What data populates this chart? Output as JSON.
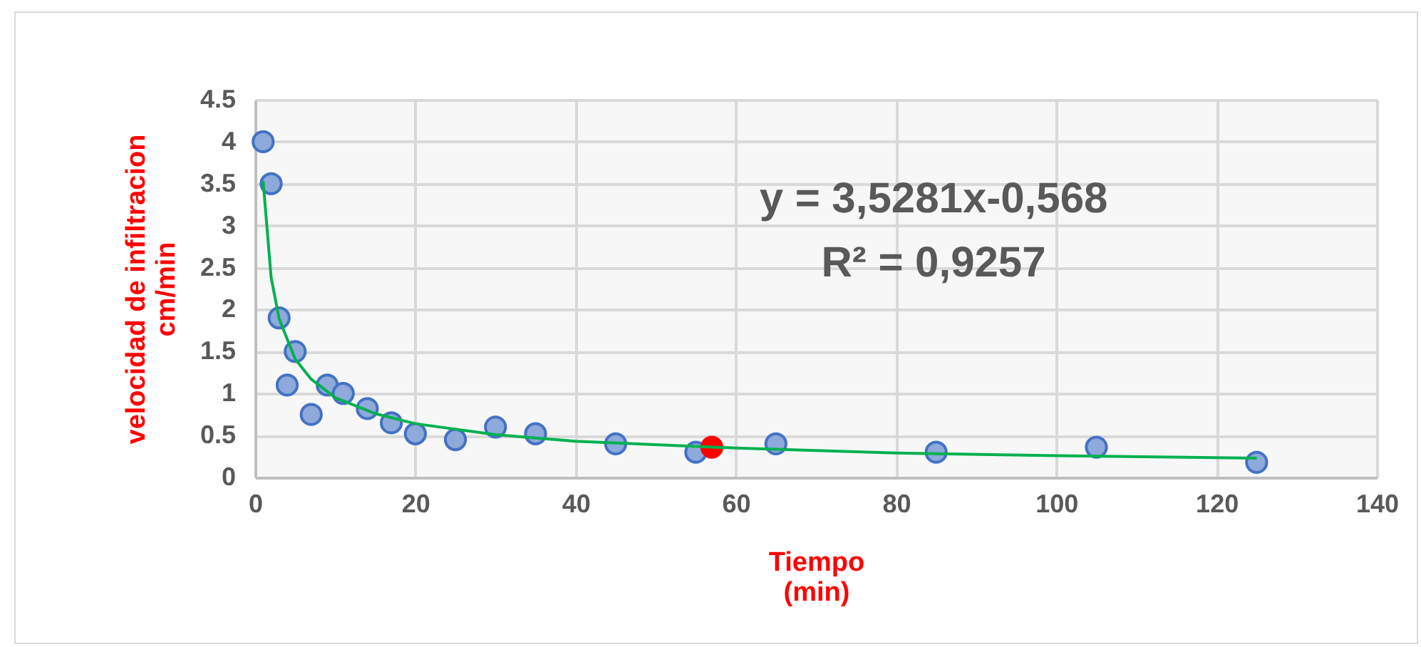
{
  "chart_data": {
    "type": "scatter",
    "xlabel": "Tiempo\n(min)",
    "ylabel": "velocidad de infiltracion\ncm/min",
    "series": [
      {
        "color": "#8eaadb",
        "x": [
          1,
          2,
          3,
          4,
          5,
          7,
          9,
          11,
          14,
          17,
          20,
          25,
          30,
          35,
          45,
          55,
          65,
          85,
          105,
          125
        ],
        "values": [
          4.0,
          3.5,
          1.9,
          1.1,
          1.5,
          0.75,
          1.1,
          1.0,
          0.82,
          0.65,
          0.52,
          0.45,
          0.6,
          0.52,
          0.4,
          0.3,
          0.4,
          0.3,
          0.36,
          0.18
        ]
      },
      {
        "color": "#ff0000",
        "x": [
          57
        ],
        "values": [
          0.36
        ]
      },
      {
        "type": "line",
        "color": "#00b050",
        "marker": "none",
        "line_style": "solid",
        "x": [
          1,
          2,
          3,
          5,
          7,
          10,
          15,
          20,
          30,
          40,
          60,
          80,
          100,
          125
        ],
        "values": [
          3.53,
          2.38,
          1.89,
          1.41,
          1.17,
          0.95,
          0.76,
          0.64,
          0.51,
          0.43,
          0.35,
          0.29,
          0.26,
          0.23
        ]
      }
    ],
    "annotations": [
      "y = 3,5281x-0,568",
      "R² = 0,9257"
    ],
    "xlim": [
      0,
      140
    ],
    "xticks": [
      0,
      20,
      40,
      60,
      80,
      100,
      120,
      140
    ],
    "ylim": [
      0,
      4.5
    ],
    "yticks": [
      0,
      0.5,
      1,
      1.5,
      2,
      2.5,
      3,
      3.5,
      4,
      4.5
    ],
    "grid": true,
    "marker": "circle"
  }
}
